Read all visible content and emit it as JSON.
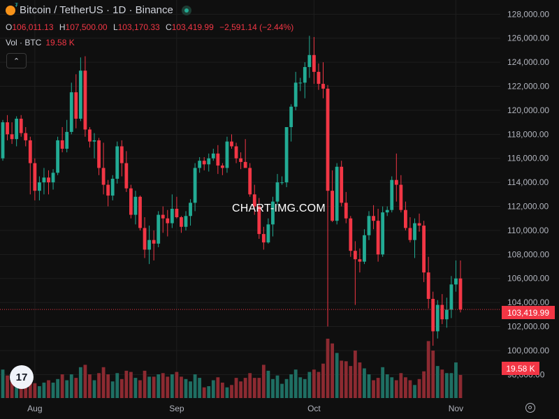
{
  "header": {
    "title": "Bitcoin / TetherUS · 1D · Binance"
  },
  "ohlc": {
    "o_label": "O",
    "o_value": "106,011.13",
    "h_label": "H",
    "h_value": "107,500.00",
    "l_label": "L",
    "l_value": "103,170.33",
    "c_label": "C",
    "c_value": "103,419.99",
    "change": "−2,591.14 (−2.44%)"
  },
  "volume_legend": {
    "label": "Vol · BTC",
    "value": "19.58 K"
  },
  "collapse_label": "⌃",
  "watermark": "CHART-IMG.COM",
  "logo_text": "17",
  "last_price_label": "103,419.99",
  "last_volume_label": "19.58 K",
  "colors": {
    "up": "#22ab94",
    "down": "#f23645",
    "background": "#0f0f0f",
    "grid": "#1e1e1e",
    "axis_text": "#b2b5be"
  },
  "chart_data": {
    "type": "candlestick",
    "interval": "1D",
    "y_axis": {
      "range": [
        96800,
        128600
      ],
      "ticks": [
        98000,
        100000,
        102000,
        104000,
        106000,
        108000,
        110000,
        112000,
        114000,
        116000,
        118000,
        120000,
        122000,
        124000,
        126000,
        128000
      ],
      "tick_labels": [
        "98,000.00",
        "100,000.00",
        "102,000.00",
        "104,000.00",
        "106,000.00",
        "108,000.00",
        "110,000.00",
        "112,000.00",
        "114,000.00",
        "116,000.00",
        "118,000.00",
        "120,000.00",
        "122,000.00",
        "124,000.00",
        "126,000.00",
        "128,000.00"
      ]
    },
    "x_axis": {
      "labels": [
        {
          "text": "Aug",
          "index": 7
        },
        {
          "text": "Sep",
          "index": 38
        },
        {
          "text": "Oct",
          "index": 68
        },
        {
          "text": "Nov",
          "index": 99
        }
      ]
    },
    "last_price": 103419.99,
    "candles": [
      [
        116000,
        119200,
        115800,
        119000
      ],
      [
        119000,
        119600,
        117500,
        118000
      ],
      [
        118000,
        119000,
        117200,
        117600
      ],
      [
        117600,
        119500,
        117000,
        119300
      ],
      [
        119300,
        119600,
        117800,
        118100
      ],
      [
        118100,
        118600,
        117000,
        117500
      ],
      [
        117500,
        117800,
        113000,
        115600
      ],
      [
        115600,
        116000,
        112500,
        113300
      ],
      [
        113300,
        114500,
        112500,
        114000
      ],
      [
        114000,
        115200,
        113000,
        114400
      ],
      [
        114400,
        115000,
        113000,
        114000
      ],
      [
        114000,
        115100,
        113400,
        114800
      ],
      [
        114800,
        117800,
        114600,
        117500
      ],
      [
        117500,
        118600,
        116500,
        116800
      ],
      [
        116800,
        119200,
        116500,
        118200
      ],
      [
        118200,
        122300,
        118000,
        121500
      ],
      [
        121500,
        123000,
        118500,
        119300
      ],
      [
        119300,
        124400,
        119100,
        123300
      ],
      [
        123300,
        124500,
        117800,
        118400
      ],
      [
        118400,
        118600,
        116900,
        117400
      ],
      [
        117400,
        118100,
        116000,
        117500
      ],
      [
        117500,
        117700,
        114600,
        115200
      ],
      [
        115200,
        117300,
        113000,
        113800
      ],
      [
        113800,
        114200,
        112000,
        112900
      ],
      [
        112900,
        114600,
        112500,
        114300
      ],
      [
        114300,
        117400,
        113900,
        117000
      ],
      [
        117000,
        117500,
        114500,
        115600
      ],
      [
        115600,
        116600,
        113200,
        113500
      ],
      [
        113500,
        113800,
        111000,
        111300
      ],
      [
        111300,
        113300,
        110500,
        112800
      ],
      [
        112800,
        112900,
        110000,
        110200
      ],
      [
        110200,
        111100,
        107700,
        108400
      ],
      [
        108400,
        110400,
        107200,
        109200
      ],
      [
        109200,
        110000,
        107500,
        108900
      ],
      [
        108900,
        111600,
        108600,
        111300
      ],
      [
        111300,
        112000,
        109800,
        111000
      ],
      [
        111000,
        111700,
        109500,
        110600
      ],
      [
        110600,
        113000,
        110200,
        111800
      ],
      [
        111800,
        112800,
        111000,
        111100
      ],
      [
        111100,
        111200,
        109800,
        110300
      ],
      [
        110300,
        111600,
        110000,
        111200
      ],
      [
        111200,
        112600,
        110400,
        112300
      ],
      [
        112300,
        115600,
        111600,
        115200
      ],
      [
        115200,
        116100,
        114800,
        115800
      ],
      [
        115800,
        116100,
        115000,
        115500
      ],
      [
        115500,
        116400,
        114900,
        116000
      ],
      [
        116000,
        116800,
        115800,
        116400
      ],
      [
        116400,
        117100,
        114700,
        115400
      ],
      [
        115400,
        115600,
        114600,
        115200
      ],
      [
        115200,
        117800,
        114800,
        117400
      ],
      [
        117400,
        118000,
        116800,
        117000
      ],
      [
        117000,
        117300,
        115600,
        116000
      ],
      [
        116000,
        116500,
        115100,
        115700
      ],
      [
        115700,
        117600,
        115200,
        115200
      ],
      [
        115200,
        115600,
        112800,
        113000
      ],
      [
        113000,
        113800,
        111300,
        112000
      ],
      [
        112000,
        112700,
        109300,
        109700
      ],
      [
        109700,
        110300,
        108400,
        109000
      ],
      [
        109000,
        111000,
        108900,
        110500
      ],
      [
        110500,
        112800,
        109500,
        112400
      ],
      [
        112400,
        114700,
        112100,
        114000
      ],
      [
        114000,
        114500,
        113800,
        114000
      ],
      [
        114000,
        118600,
        113600,
        118600
      ],
      [
        118600,
        120500,
        117400,
        120300
      ],
      [
        120300,
        123200,
        120000,
        122300
      ],
      [
        122300,
        122700,
        121600,
        122300
      ],
      [
        122300,
        124000,
        121000,
        123600
      ],
      [
        123600,
        126200,
        122700,
        124600
      ],
      [
        124600,
        126100,
        122200,
        123200
      ],
      [
        123200,
        123900,
        121700,
        122200
      ],
      [
        122200,
        124000,
        121000,
        121800
      ],
      [
        121800,
        122100,
        102000,
        113300
      ],
      [
        113300,
        115000,
        110700,
        110800
      ],
      [
        110800,
        115600,
        110500,
        115300
      ],
      [
        115300,
        115800,
        112000,
        112300
      ],
      [
        112300,
        113200,
        110600,
        111000
      ],
      [
        111000,
        111200,
        107800,
        108300
      ],
      [
        108300,
        109100,
        103800,
        107600
      ],
      [
        107600,
        108500,
        106500,
        107400
      ],
      [
        107400,
        110100,
        107200,
        109600
      ],
      [
        109600,
        111600,
        109200,
        111200
      ],
      [
        111200,
        112100,
        110100,
        110800
      ],
      [
        110800,
        111800,
        107400,
        108000
      ],
      [
        108000,
        112000,
        107800,
        111500
      ],
      [
        111500,
        112000,
        111200,
        111700
      ],
      [
        111700,
        114500,
        111500,
        114200
      ],
      [
        114200,
        116400,
        112400,
        113800
      ],
      [
        113800,
        114600,
        111500,
        111700
      ],
      [
        111700,
        112400,
        110000,
        110200
      ],
      [
        110200,
        111100,
        109000,
        109200
      ],
      [
        109200,
        111000,
        107700,
        110600
      ],
      [
        110600,
        111400,
        109900,
        110400
      ],
      [
        110400,
        110800,
        105700,
        106500
      ],
      [
        106500,
        107800,
        103500,
        104300
      ],
      [
        104300,
        104900,
        100400,
        101600
      ],
      [
        101600,
        104200,
        101000,
        103800
      ],
      [
        103800,
        104700,
        102200,
        102600
      ],
      [
        102600,
        104400,
        101900,
        103400
      ],
      [
        103400,
        106200,
        102700,
        105500
      ],
      [
        105500,
        107500,
        104900,
        106000
      ],
      [
        106000,
        107500,
        103170,
        103420
      ]
    ],
    "volumes": [
      48,
      38,
      28,
      30,
      34,
      24,
      46,
      25,
      20,
      26,
      30,
      26,
      32,
      40,
      30,
      40,
      34,
      52,
      56,
      40,
      30,
      42,
      52,
      40,
      28,
      42,
      32,
      46,
      44,
      34,
      30,
      46,
      36,
      36,
      40,
      42,
      36,
      40,
      44,
      36,
      32,
      28,
      40,
      34,
      18,
      20,
      30,
      35,
      26,
      18,
      22,
      34,
      28,
      34,
      42,
      34,
      34,
      56,
      46,
      32,
      38,
      24,
      32,
      40,
      48,
      35,
      32,
      44,
      48,
      44,
      58,
      100,
      92,
      76,
      63,
      62,
      54,
      80,
      60,
      50,
      40,
      30,
      34,
      52,
      40,
      35,
      30,
      42,
      35,
      30,
      22,
      32,
      45,
      96,
      80,
      54,
      48,
      42,
      42,
      60,
      39
    ]
  }
}
